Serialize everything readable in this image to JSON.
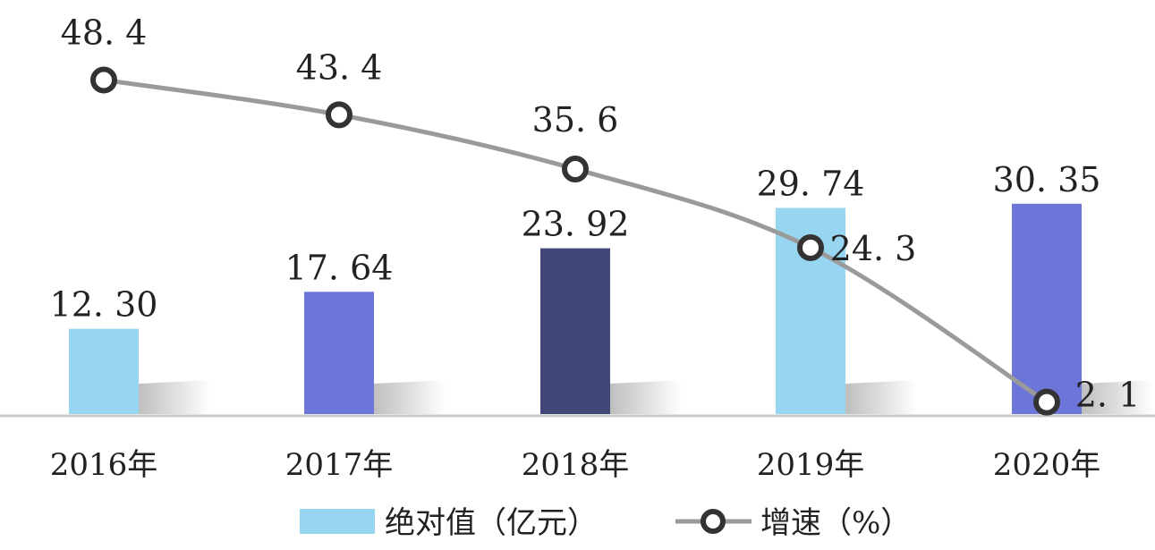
{
  "chart_data": {
    "type": "bar",
    "categories": [
      "2016年",
      "2017年",
      "2018年",
      "2019年",
      "2020年"
    ],
    "series": [
      {
        "name": "绝对值（亿元）",
        "type": "bar",
        "values": [
          12.3,
          17.64,
          23.92,
          29.74,
          30.35
        ],
        "labels": [
          "12. 30",
          "17. 64",
          "23. 92",
          "29. 74",
          "30. 35"
        ],
        "colors": [
          "#97d5f0",
          "#6c76d8",
          "#414878",
          "#97d5f0",
          "#6c76d8"
        ]
      },
      {
        "name": "增速（%）",
        "type": "line",
        "values": [
          48.4,
          43.4,
          35.6,
          24.3,
          2.1
        ],
        "labels": [
          "48. 4",
          "43. 4",
          "35. 6",
          "24. 3",
          "2. 1"
        ],
        "color": "#9a9a9a"
      }
    ],
    "legend_position": "bottom",
    "grid": false
  }
}
